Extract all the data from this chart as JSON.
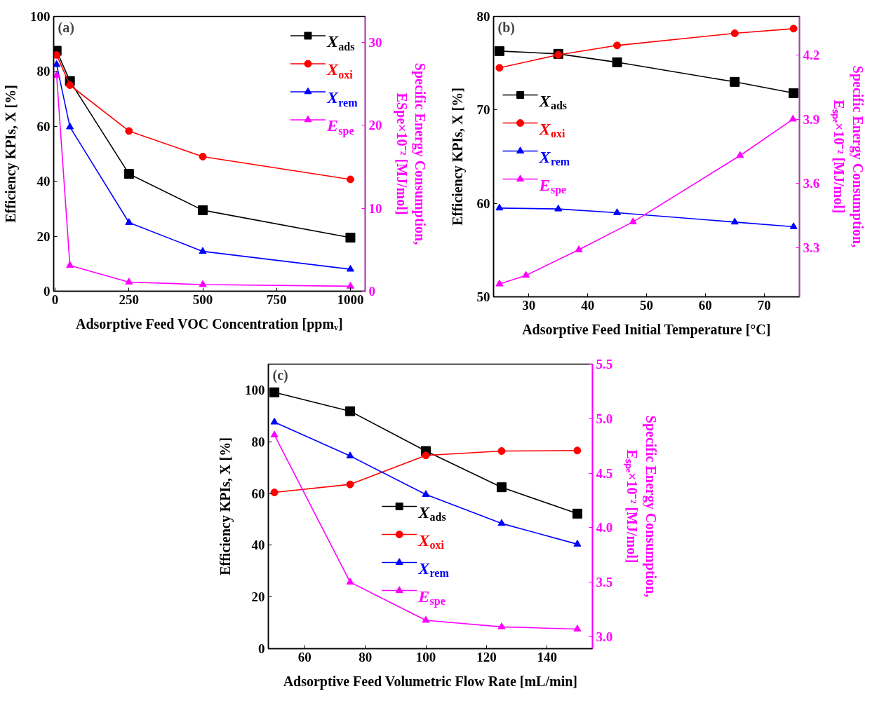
{
  "chart_data": [
    {
      "type": "line",
      "xlabel": "Adsorptive Feed VOC Concentration [ppmᵥ]",
      "ylabel": "Efficiency KPIs, X [%]",
      "y2label": "Specific Energy Consumption,\nESpe×10⁻² [MJ/mol]",
      "annotations": [
        "(a)"
      ],
      "x": [
        5,
        50,
        250,
        500,
        1000
      ],
      "xlim": [
        -5,
        1050
      ],
      "xticks": [
        0,
        250,
        500,
        750,
        1000
      ],
      "ylim": [
        0,
        100
      ],
      "yticks": [
        0,
        20,
        40,
        60,
        80,
        100
      ],
      "y2lim": [
        0,
        33.1
      ],
      "y2ticks": [
        0,
        10,
        20,
        30
      ],
      "grid": false,
      "legend": "top right",
      "series": [
        {
          "name": "X$_{ads}$",
          "color": "#000000",
          "marker": "square",
          "values": [
            87.5,
            76.5,
            42.7,
            29.5,
            19.5
          ]
        },
        {
          "name": "X$_{oxi}$",
          "color": "#ff0000",
          "marker": "circle",
          "values": [
            86,
            75,
            58.3,
            49,
            40.7
          ]
        },
        {
          "name": "X$_{rem}$",
          "color": "#0000ff",
          "marker": "triangle",
          "values": [
            82.5,
            59.8,
            25,
            14.5,
            8
          ]
        },
        {
          "name": "E$_{spe}$",
          "color": "#ff00ff",
          "marker": "triangle",
          "axis": "y2",
          "values": [
            26.0,
            3.1,
            1.1,
            0.8,
            0.6
          ]
        }
      ]
    },
    {
      "type": "line",
      "xlabel": "Adsorptive Feed Initial Temperature [°C]",
      "ylabel": "Efficiency KPIs, X [%]",
      "y2label": "Specific Energy Consumption,\nEₛₚₑ×10⁻² [MJ/mol]",
      "annotations": [
        "(b)"
      ],
      "x": [
        25,
        35,
        45,
        65,
        75
      ],
      "xlim": [
        24,
        76
      ],
      "xticks": [
        30,
        40,
        50,
        60,
        70
      ],
      "ylim": [
        50,
        80
      ],
      "yticks": [
        50,
        60,
        70,
        80
      ],
      "y2lim": [
        3.07,
        4.38
      ],
      "y2ticks": [
        3.3,
        3.6,
        3.9,
        4.2
      ],
      "grid": false,
      "legend": "left",
      "series": [
        {
          "name": "X$_{ads}$",
          "color": "#000000",
          "marker": "square",
          "values": [
            76.3,
            76.0,
            75.1,
            73.0,
            71.8
          ]
        },
        {
          "name": "X$_{oxi}$",
          "color": "#ff0000",
          "marker": "circle",
          "values": [
            74.5,
            75.9,
            76.9,
            78.2,
            78.7
          ]
        },
        {
          "name": "X$_{rem}$",
          "color": "#0000ff",
          "marker": "triangle",
          "values": [
            59.5,
            59.4,
            59.0,
            58.0,
            57.5
          ]
        },
        {
          "name": "E$_{spe}$",
          "color": "#ff00ff",
          "marker": "triangle",
          "axis": "y2",
          "x": [
            25,
            29.5,
            38.5,
            47.7,
            65.9,
            74.9
          ],
          "values": [
            3.13,
            3.17,
            3.29,
            3.42,
            3.73,
            3.9
          ]
        }
      ]
    },
    {
      "type": "line",
      "xlabel": "Adsorptive Feed Volumetric Flow Rate [mL/min]",
      "ylabel": "Efficiency KPIs, X [%]",
      "y2label": "Specific Energy Consumption,\nEₛₚₑ×10⁻² [MJ/mol]",
      "annotations": [
        "(c)"
      ],
      "x": [
        50,
        75,
        100,
        125,
        150
      ],
      "xlim": [
        48,
        155
      ],
      "xticks": [
        60,
        80,
        100,
        120,
        140
      ],
      "ylim": [
        0,
        110
      ],
      "yticks": [
        0,
        20,
        40,
        60,
        80,
        100
      ],
      "y2lim": [
        2.89,
        5.5
      ],
      "y2ticks": [
        {
          "value": 3,
          "label": "3.0"
        },
        3.5,
        {
          "value": 4,
          "label": "4.0"
        },
        4.5,
        {
          "value": 5,
          "label": "5.0"
        },
        5.5
      ],
      "grid": false,
      "legend": "center",
      "series": [
        {
          "name": "X$_{ads}$",
          "color": "#000000",
          "marker": "square",
          "values": [
            99.1,
            91.8,
            76.4,
            62.4,
            52.2
          ]
        },
        {
          "name": "X$_{oxi}$",
          "color": "#ff0000",
          "marker": "circle",
          "values": [
            60.4,
            63.5,
            74.7,
            76.4,
            76.6
          ]
        },
        {
          "name": "X$_{rem}$",
          "color": "#0000ff",
          "marker": "triangle",
          "values": [
            87.6,
            74.5,
            59.6,
            48.4,
            40.4
          ]
        },
        {
          "name": "E$_{spe}$",
          "color": "#ff00ff",
          "marker": "triangle",
          "axis": "y2",
          "values": [
            4.85,
            3.5,
            3.15,
            3.09,
            3.07
          ]
        }
      ]
    }
  ]
}
